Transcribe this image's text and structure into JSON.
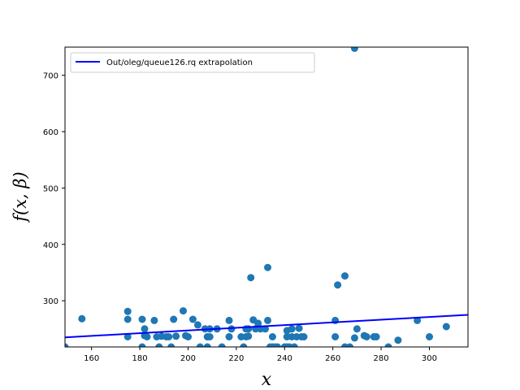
{
  "chart_data": {
    "type": "scatter",
    "xlabel": "x",
    "ylabel": "f(x, β)",
    "xlim": [
      149,
      316
    ],
    "ylim": [
      218,
      750
    ],
    "xticks": [
      160,
      180,
      200,
      220,
      240,
      260,
      280,
      300
    ],
    "yticks": [
      300,
      400,
      500,
      600,
      700
    ],
    "grid": false,
    "legend_position": "top-left",
    "colors": {
      "points": "#1f77b4",
      "line": "#0000ff"
    },
    "series": [
      {
        "kind": "scatter",
        "points": [
          [
            149,
            218
          ],
          [
            156,
            268
          ],
          [
            175,
            281
          ],
          [
            175,
            267
          ],
          [
            175,
            236
          ],
          [
            181,
            267
          ],
          [
            181,
            218
          ],
          [
            182,
            250
          ],
          [
            182,
            238
          ],
          [
            183,
            236
          ],
          [
            186,
            265
          ],
          [
            187,
            236
          ],
          [
            188,
            218
          ],
          [
            189,
            237
          ],
          [
            191,
            236
          ],
          [
            192,
            236
          ],
          [
            193,
            218
          ],
          [
            194,
            267
          ],
          [
            195,
            237
          ],
          [
            198,
            282
          ],
          [
            199,
            238
          ],
          [
            200,
            236
          ],
          [
            202,
            267
          ],
          [
            204,
            257
          ],
          [
            205,
            218
          ],
          [
            207,
            250
          ],
          [
            208,
            236
          ],
          [
            208,
            218
          ],
          [
            209,
            250
          ],
          [
            209,
            236
          ],
          [
            212,
            250
          ],
          [
            214,
            218
          ],
          [
            217,
            265
          ],
          [
            217,
            236
          ],
          [
            218,
            250
          ],
          [
            222,
            236
          ],
          [
            223,
            218
          ],
          [
            224,
            250
          ],
          [
            224,
            236
          ],
          [
            225,
            250
          ],
          [
            225,
            237
          ],
          [
            226,
            341
          ],
          [
            227,
            266
          ],
          [
            228,
            250
          ],
          [
            229,
            260
          ],
          [
            230,
            250
          ],
          [
            232,
            250
          ],
          [
            233,
            359
          ],
          [
            233,
            265
          ],
          [
            234,
            218
          ],
          [
            235,
            218
          ],
          [
            235,
            236
          ],
          [
            236,
            218
          ],
          [
            237,
            218
          ],
          [
            240,
            218
          ],
          [
            241,
            247
          ],
          [
            241,
            236
          ],
          [
            241,
            218
          ],
          [
            242,
            218
          ],
          [
            243,
            250
          ],
          [
            243,
            236
          ],
          [
            244,
            218
          ],
          [
            245,
            236
          ],
          [
            246,
            251
          ],
          [
            247,
            236
          ],
          [
            248,
            236
          ],
          [
            261,
            265
          ],
          [
            261,
            236
          ],
          [
            262,
            328
          ],
          [
            265,
            344
          ],
          [
            265,
            218
          ],
          [
            267,
            218
          ],
          [
            269,
            234
          ],
          [
            269,
            748
          ],
          [
            270,
            250
          ],
          [
            273,
            238
          ],
          [
            274,
            236
          ],
          [
            277,
            236
          ],
          [
            278,
            236
          ],
          [
            283,
            218
          ],
          [
            287,
            230
          ],
          [
            295,
            265
          ],
          [
            300,
            236
          ],
          [
            307,
            254
          ]
        ]
      },
      {
        "kind": "line",
        "name": "Out/oleg/queue126.rq extrapolation",
        "points": [
          [
            149,
            235
          ],
          [
            316,
            275
          ]
        ]
      }
    ]
  }
}
